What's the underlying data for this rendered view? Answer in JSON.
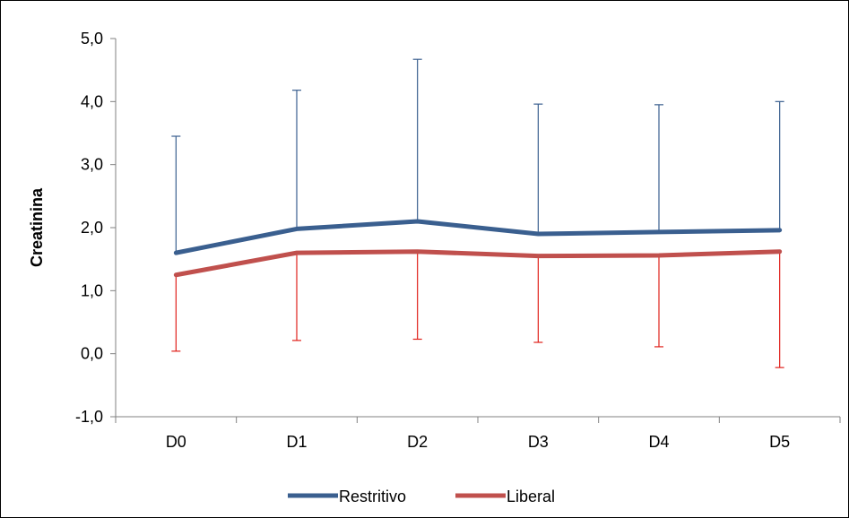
{
  "chart_data": {
    "type": "line",
    "title": "",
    "xlabel": "",
    "ylabel": "Creatinina",
    "categories": [
      "D0",
      "D1",
      "D2",
      "D3",
      "D4",
      "D5"
    ],
    "ylim": [
      -1.0,
      5.0
    ],
    "yticks": [
      "-1,0",
      "0,0",
      "1,0",
      "2,0",
      "3,0",
      "4,0",
      "5,0"
    ],
    "ytick_values": [
      -1,
      0,
      1,
      2,
      3,
      4,
      5
    ],
    "grid": false,
    "legend_position": "bottom",
    "series": [
      {
        "name": "Restritivo",
        "color": "#3A5F8F",
        "error_color": "#3A5F8F",
        "error_direction": "up",
        "values": [
          1.6,
          1.98,
          2.1,
          1.9,
          1.93,
          1.96
        ],
        "error_upper": [
          3.45,
          4.18,
          4.67,
          3.96,
          3.95,
          4.0
        ]
      },
      {
        "name": "Liberal",
        "color": "#C0504D",
        "error_color": "#E0201A",
        "error_direction": "down",
        "values": [
          1.25,
          1.6,
          1.62,
          1.55,
          1.56,
          1.62
        ],
        "error_lower": [
          0.04,
          0.21,
          0.23,
          0.18,
          0.11,
          -0.22
        ]
      }
    ]
  }
}
